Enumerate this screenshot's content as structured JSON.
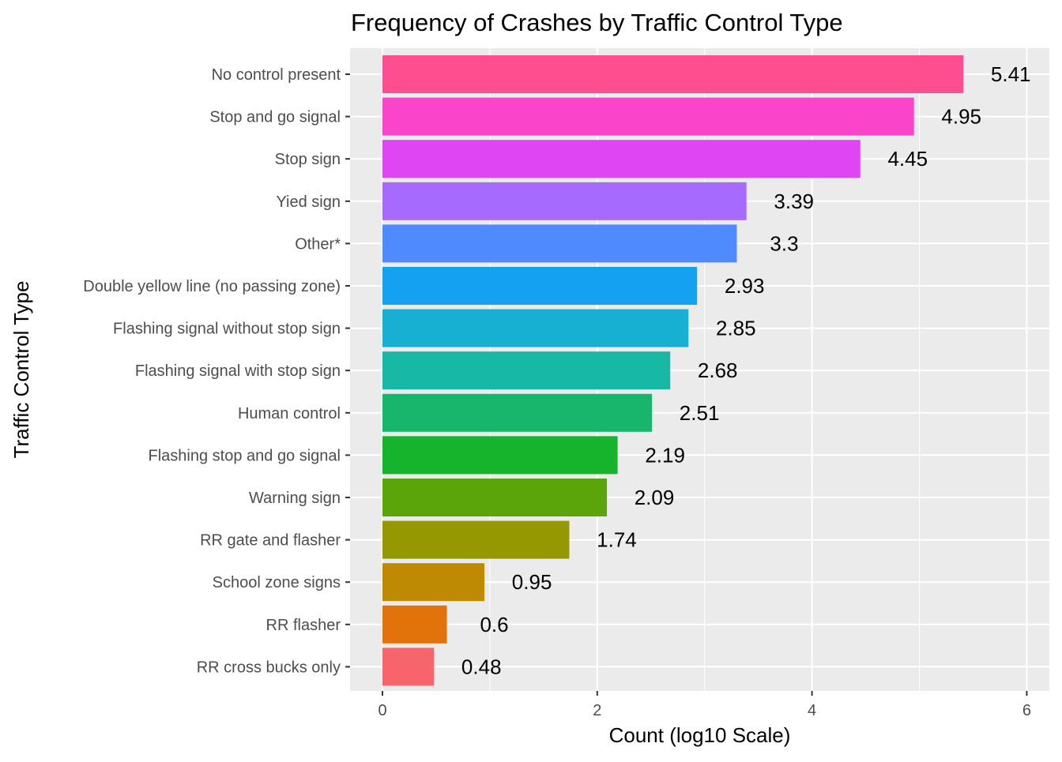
{
  "chart_data": {
    "type": "bar",
    "orientation": "horizontal",
    "title": "Frequency of Crashes by Traffic Control Type",
    "xlabel": "Count (log10 Scale)",
    "ylabel": "Traffic Control Type",
    "xlim": [
      0,
      6.2
    ],
    "x_ticks": [
      "0",
      "2",
      "4",
      "6"
    ],
    "grid": true,
    "legend": "none",
    "categories": [
      "No control present",
      "Stop and go signal",
      "Stop sign",
      "Yied sign",
      "Other*",
      "Double yellow line (no passing zone)",
      "Flashing signal without stop sign",
      "Flashing signal with stop sign",
      "Human control",
      "Flashing stop and go signal",
      "Warning sign",
      "RR gate and flasher",
      "School zone signs",
      "RR flasher",
      "RR cross bucks only"
    ],
    "values": [
      5.41,
      4.95,
      4.45,
      3.39,
      3.3,
      2.93,
      2.85,
      2.68,
      2.51,
      2.19,
      2.09,
      1.74,
      0.95,
      0.6,
      0.48
    ],
    "value_labels": [
      "5.41",
      "4.95",
      "4.45",
      "3.39",
      "3.3",
      "2.93",
      "2.85",
      "2.68",
      "2.51",
      "2.19",
      "2.09",
      "1.74",
      "0.95",
      "0.6",
      "0.48"
    ],
    "colors": [
      "#FF4E8F",
      "#FA45CA",
      "#E045F3",
      "#A66AFF",
      "#4F8BFF",
      "#15A1F2",
      "#17B0D2",
      "#17B8A4",
      "#18B66C",
      "#16B42C",
      "#5BA50A",
      "#959801",
      "#BF8A03",
      "#E2730A",
      "#F8646B"
    ]
  }
}
